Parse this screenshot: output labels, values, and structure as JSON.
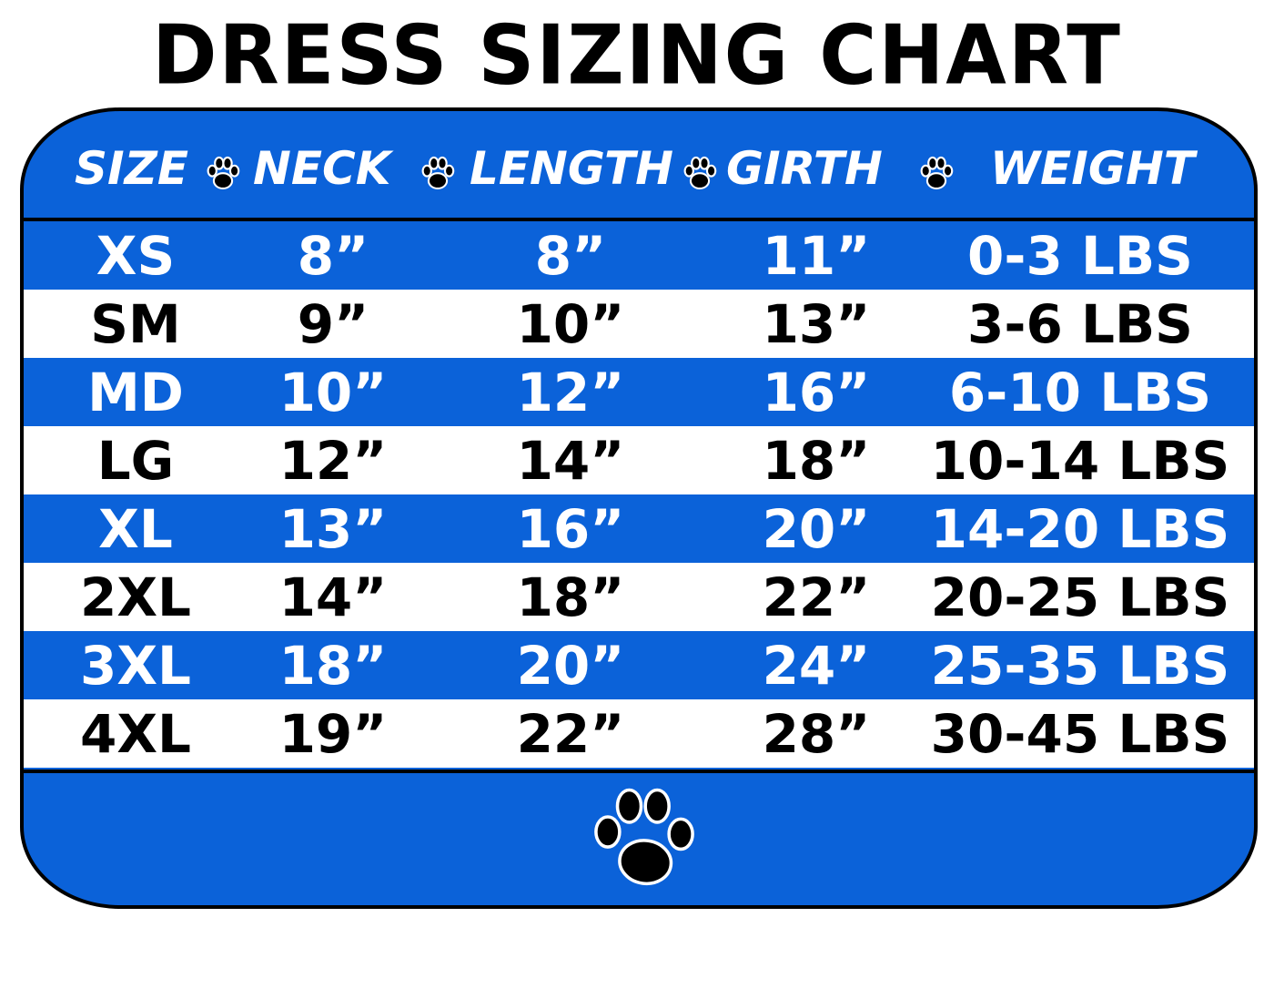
{
  "title": "DRESS SIZING CHART",
  "colors": {
    "blue": "#0b62d9",
    "white": "#ffffff",
    "text_dark": "#000000"
  },
  "icons": {
    "separator": "paw-print-icon",
    "footer": "paw-print-icon"
  },
  "chart_data": {
    "type": "table",
    "title": "DRESS SIZING CHART",
    "columns": [
      "SIZE",
      "NECK",
      "LENGTH",
      "GIRTH",
      "WEIGHT"
    ],
    "rows": [
      [
        "XS",
        "8”",
        "8”",
        "11”",
        "0-3 LBS"
      ],
      [
        "SM",
        "9”",
        "10”",
        "13”",
        "3-6 LBS"
      ],
      [
        "MD",
        "10”",
        "12”",
        "16”",
        "6-10 LBS"
      ],
      [
        "LG",
        "12”",
        "14”",
        "18”",
        "10-14 LBS"
      ],
      [
        "XL",
        "13”",
        "16”",
        "20”",
        "14-20 LBS"
      ],
      [
        "2XL",
        "14”",
        "18”",
        "22”",
        "20-25 LBS"
      ],
      [
        "3XL",
        "18”",
        "20”",
        "24”",
        "25-35 LBS"
      ],
      [
        "4XL",
        "19”",
        "22”",
        "28”",
        "30-45 LBS"
      ]
    ]
  }
}
